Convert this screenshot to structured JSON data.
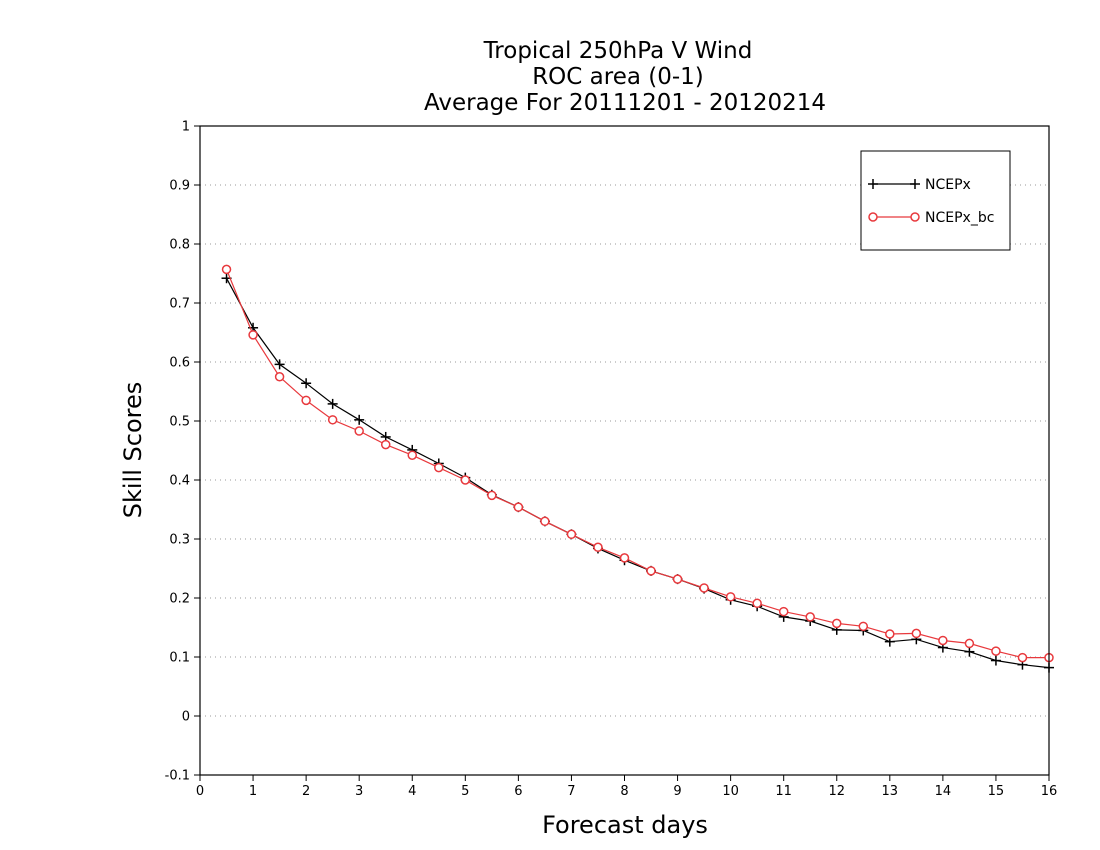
{
  "chart_data": {
    "type": "line",
    "title_lines": [
      "Tropical 250hPa V Wind",
      "ROC area (0-1)",
      "Average For 20111201 - 20120214"
    ],
    "xlabel": "Forecast days",
    "ylabel": "Skill Scores",
    "xlim": [
      0,
      16
    ],
    "ylim": [
      -0.1,
      1
    ],
    "x_ticks": [
      "0",
      "1",
      "2",
      "3",
      "4",
      "5",
      "6",
      "7",
      "8",
      "9",
      "10",
      "11",
      "12",
      "13",
      "14",
      "15",
      "16"
    ],
    "y_ticks": [
      "-0.1",
      "0",
      "0.1",
      "0.2",
      "0.3",
      "0.4",
      "0.5",
      "0.6",
      "0.7",
      "0.8",
      "0.9",
      "1"
    ],
    "grid": "horizontal dotted",
    "legend_position": "top-right",
    "x": [
      0.5,
      1,
      1.5,
      2,
      2.5,
      3,
      3.5,
      4,
      4.5,
      5,
      5.5,
      6,
      6.5,
      7,
      7.5,
      8,
      8.5,
      9,
      9.5,
      10,
      10.5,
      11,
      11.5,
      12,
      12.5,
      13,
      13.5,
      14,
      14.5,
      15,
      15.5,
      16
    ],
    "series": [
      {
        "name": "NCEPx",
        "color": "#000000",
        "marker": "plus",
        "values": [
          0.742,
          0.658,
          0.596,
          0.564,
          0.529,
          0.502,
          0.473,
          0.451,
          0.428,
          0.404,
          0.375,
          0.354,
          0.33,
          0.308,
          0.284,
          0.264,
          0.246,
          0.232,
          0.216,
          0.197,
          0.186,
          0.168,
          0.161,
          0.146,
          0.145,
          0.126,
          0.13,
          0.116,
          0.109,
          0.094,
          0.087,
          0.082
        ]
      },
      {
        "name": "NCEPx_bc",
        "color": "#e8393d",
        "marker": "circle",
        "values": [
          0.757,
          0.646,
          0.575,
          0.535,
          0.502,
          0.483,
          0.46,
          0.442,
          0.421,
          0.4,
          0.374,
          0.354,
          0.33,
          0.308,
          0.286,
          0.268,
          0.246,
          0.232,
          0.217,
          0.202,
          0.191,
          0.177,
          0.168,
          0.157,
          0.152,
          0.139,
          0.14,
          0.128,
          0.123,
          0.11,
          0.099,
          0.099
        ]
      }
    ]
  }
}
